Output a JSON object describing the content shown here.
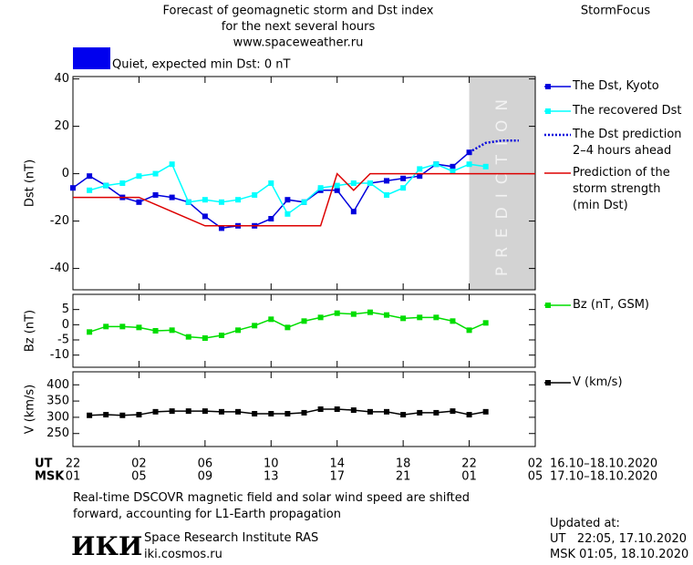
{
  "header": {
    "title_lines": [
      "Forecast of geomagnetic storm and Dst index",
      "for the next several hours",
      "www.spaceweather.ru"
    ],
    "brand": "StormFocus"
  },
  "status": {
    "label": "Quiet, expected min Dst: 0 nT",
    "color": "#0000ee"
  },
  "chart_data": [
    {
      "type": "line",
      "ylabel": "Dst (nT)",
      "ylim": [
        -49,
        41
      ],
      "yticks": [
        -40,
        -20,
        0,
        20,
        40
      ],
      "xlim": [
        0,
        28
      ],
      "xticks": [
        0,
        4,
        8,
        12,
        16,
        20,
        24,
        28
      ],
      "prediction_region": {
        "xlim": [
          24,
          28
        ],
        "label": "PREDICTION",
        "color": "#d3d3d3"
      },
      "series": [
        {
          "name": "The Dst, Kyoto",
          "color": "#0000dd",
          "marker": "square",
          "dashed": false,
          "x": [
            0,
            1,
            2,
            3,
            4,
            5,
            6,
            7,
            8,
            9,
            10,
            11,
            12,
            13,
            14,
            15,
            16,
            17,
            18,
            19,
            20,
            21,
            22,
            23,
            24
          ],
          "values": [
            -6,
            -1,
            -5,
            -10,
            -12,
            -9,
            -10,
            -12,
            -18,
            -23,
            -22,
            -22,
            -19,
            -11,
            -12,
            -7,
            -7,
            -16,
            -4,
            -3,
            -2,
            -1,
            4,
            3,
            9
          ]
        },
        {
          "name": "The recovered Dst",
          "color": "#00ffff",
          "marker": "square",
          "dashed": false,
          "x": [
            1,
            2,
            3,
            4,
            5,
            6,
            7,
            8,
            9,
            10,
            11,
            12,
            13,
            14,
            15,
            16,
            17,
            18,
            19,
            20,
            21,
            22,
            23,
            24,
            25
          ],
          "values": [
            -7,
            -5,
            -4,
            -1,
            0,
            4,
            -12,
            -11,
            -12,
            -11,
            -9,
            -4,
            -17,
            -12,
            -6,
            -5,
            -4,
            -4,
            -9,
            -6,
            2,
            4,
            1,
            4,
            3
          ]
        },
        {
          "name": "The Dst prediction\n2–4 hours ahead",
          "color": "#0000dd",
          "marker": null,
          "dashed": true,
          "x": [
            24,
            25,
            26,
            27
          ],
          "values": [
            9,
            13,
            14,
            14
          ]
        },
        {
          "name": "Prediction of the\nstorm strength\n(min Dst)",
          "color": "#dd0000",
          "marker": null,
          "dashed": false,
          "x": [
            0,
            4,
            6,
            8,
            15,
            16,
            17,
            18,
            28
          ],
          "values": [
            -10,
            -10,
            -16,
            -22,
            -22,
            0,
            -7,
            0,
            0
          ]
        }
      ]
    },
    {
      "type": "line",
      "ylabel": "Bz (nT)",
      "ylim": [
        -14,
        10
      ],
      "yticks": [
        -10,
        -5,
        0,
        5
      ],
      "xlim": [
        0,
        28
      ],
      "xticks": [
        0,
        4,
        8,
        12,
        16,
        20,
        24,
        28
      ],
      "series": [
        {
          "name": "Bz (nT, GSM)",
          "color": "#00dd00",
          "marker": "square",
          "dashed": false,
          "x": [
            1,
            2,
            3,
            4,
            5,
            6,
            7,
            8,
            9,
            10,
            11,
            12,
            13,
            14,
            15,
            16,
            17,
            18,
            19,
            20,
            21,
            22,
            23,
            24,
            25
          ],
          "values": [
            -2.4,
            -0.6,
            -0.6,
            -0.9,
            -2,
            -1.8,
            -4,
            -4.4,
            -3.5,
            -1.8,
            -0.3,
            1.8,
            -0.9,
            1.2,
            2.4,
            3.8,
            3.5,
            4.1,
            3.2,
            2.1,
            2.4,
            2.4,
            1.2,
            -1.8,
            0.6
          ]
        }
      ]
    },
    {
      "type": "line",
      "ylabel": "V (km/s)",
      "ylim": [
        210,
        440
      ],
      "yticks": [
        250,
        300,
        350,
        400
      ],
      "xlim": [
        0,
        28
      ],
      "xticks": [
        {
          "value": 0,
          "label": "22"
        },
        {
          "value": 4,
          "label": "02"
        },
        {
          "value": 8,
          "label": "06"
        },
        {
          "value": 12,
          "label": "10"
        },
        {
          "value": 16,
          "label": "14"
        },
        {
          "value": 20,
          "label": "18"
        },
        {
          "value": 24,
          "label": "22"
        },
        {
          "value": 28,
          "label": "02"
        }
      ],
      "xticks_msk": [
        "01",
        "05",
        "09",
        "13",
        "17",
        "21",
        "01",
        "05"
      ],
      "x_row_labels": [
        "UT",
        "MSK"
      ],
      "x_ranges": [
        "16.10–18.10.2020",
        "17.10–18.10.2020"
      ],
      "series": [
        {
          "name": "V (km/s)",
          "color": "#000000",
          "marker": "square",
          "dashed": false,
          "x": [
            1,
            2,
            3,
            4,
            5,
            6,
            7,
            8,
            9,
            10,
            11,
            12,
            13,
            14,
            15,
            16,
            17,
            18,
            19,
            20,
            21,
            22,
            23,
            24,
            25
          ],
          "values": [
            306,
            308,
            306,
            308,
            317,
            319,
            319,
            319,
            317,
            317,
            311,
            311,
            311,
            314,
            325,
            325,
            322,
            317,
            317,
            308,
            314,
            314,
            319,
            308,
            317
          ]
        }
      ]
    }
  ],
  "footer": {
    "note_lines": [
      "Real-time DSCOVR magnetic field and solar wind speed are shifted",
      "forward, accounting for L1-Earth propagation"
    ],
    "logo": "ИКИ",
    "institute": [
      "Space Research Institute RAS",
      "iki.cosmos.ru"
    ],
    "updated": [
      "Updated at:",
      "UT   22:05, 17.10.2020",
      "MSK 01:05, 18.10.2020"
    ]
  }
}
